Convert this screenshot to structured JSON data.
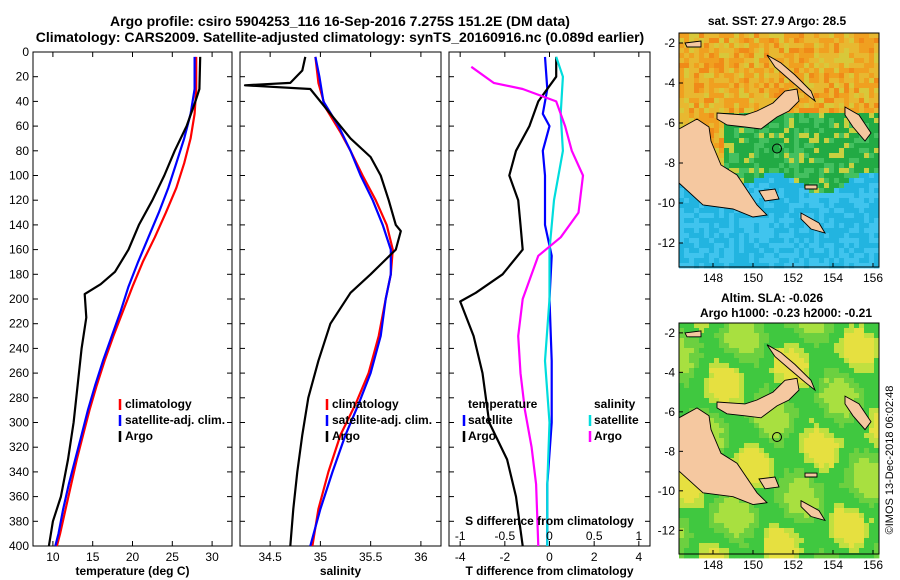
{
  "header": {
    "line1": "Argo profile: csiro 5904253_116 16-Sep-2016 7.275S 151.2E (DM data)",
    "line2": "Climatology: CARS2009. Satellite-adjusted climatology: synTS_20160916.nc (0.089d earlier)"
  },
  "footer": {
    "credit": "©IMOS 13-Dec-2018 06:02:48"
  },
  "colors": {
    "climatology": "#ff0000",
    "satellite": "#0000ff",
    "argo": "#000000",
    "sat_s": "#00dddd",
    "argo_s": "#ff00ff"
  },
  "chart_data": [
    {
      "type": "line",
      "title": "",
      "xlabel": "temperature (deg C)",
      "ylabel": "",
      "xlim": [
        7.5,
        32.5
      ],
      "ylim": [
        400,
        0
      ],
      "xticks": [
        10,
        15,
        20,
        25,
        30
      ],
      "yticks": [
        0,
        20,
        40,
        60,
        80,
        100,
        120,
        140,
        160,
        180,
        200,
        220,
        240,
        260,
        280,
        300,
        320,
        340,
        360,
        380,
        400
      ],
      "legend": [
        "climatology",
        "satellite-adj. clim.",
        "Argo"
      ],
      "legend_position": "lower-right",
      "series": [
        {
          "name": "climatology",
          "color": "#ff0000",
          "points": [
            [
              28.0,
              4
            ],
            [
              28.0,
              30
            ],
            [
              27.8,
              50
            ],
            [
              27.3,
              70
            ],
            [
              26.5,
              90
            ],
            [
              25.5,
              110
            ],
            [
              24.2,
              130
            ],
            [
              22.8,
              150
            ],
            [
              21.3,
              170
            ],
            [
              20.0,
              190
            ],
            [
              18.8,
              210
            ],
            [
              17.6,
              230
            ],
            [
              16.5,
              250
            ],
            [
              15.5,
              270
            ],
            [
              14.6,
              290
            ],
            [
              13.8,
              310
            ],
            [
              13.0,
              330
            ],
            [
              12.3,
              350
            ],
            [
              11.6,
              370
            ],
            [
              10.9,
              390
            ],
            [
              10.5,
              400
            ]
          ]
        },
        {
          "name": "satellite-adj. clim.",
          "color": "#0000ff",
          "points": [
            [
              27.8,
              4
            ],
            [
              27.8,
              30
            ],
            [
              27.3,
              50
            ],
            [
              26.5,
              70
            ],
            [
              25.5,
              90
            ],
            [
              24.5,
              110
            ],
            [
              23.3,
              130
            ],
            [
              22.0,
              150
            ],
            [
              20.7,
              170
            ],
            [
              19.5,
              190
            ],
            [
              18.5,
              210
            ],
            [
              17.4,
              230
            ],
            [
              16.3,
              250
            ],
            [
              15.3,
              270
            ],
            [
              14.4,
              290
            ],
            [
              13.6,
              310
            ],
            [
              12.8,
              330
            ],
            [
              12.0,
              350
            ],
            [
              11.3,
              370
            ],
            [
              10.7,
              390
            ],
            [
              10.3,
              400
            ]
          ]
        },
        {
          "name": "Argo",
          "color": "#000000",
          "points": [
            [
              28.5,
              4
            ],
            [
              28.4,
              30
            ],
            [
              27.9,
              40
            ],
            [
              26.8,
              60
            ],
            [
              25.3,
              80
            ],
            [
              24.0,
              100
            ],
            [
              22.5,
              120
            ],
            [
              20.8,
              140
            ],
            [
              19.5,
              160
            ],
            [
              17.8,
              178
            ],
            [
              16.0,
              188
            ],
            [
              14.0,
              196
            ],
            [
              14.2,
              215
            ],
            [
              13.6,
              240
            ],
            [
              13.1,
              270
            ],
            [
              12.6,
              300
            ],
            [
              11.9,
              330
            ],
            [
              11.0,
              360
            ],
            [
              10.0,
              380
            ],
            [
              9.5,
              400
            ]
          ]
        }
      ]
    },
    {
      "type": "line",
      "title": "",
      "xlabel": "salinity",
      "ylabel": "",
      "xlim": [
        34.2,
        36.2
      ],
      "ylim": [
        400,
        0
      ],
      "xticks": [
        34.5,
        35,
        35.5,
        36
      ],
      "yticks": [
        0,
        20,
        40,
        60,
        80,
        100,
        120,
        140,
        160,
        180,
        200,
        220,
        240,
        260,
        280,
        300,
        320,
        340,
        360,
        380,
        400
      ],
      "legend": [
        "climatology",
        "satellite-adj. clim.",
        "Argo"
      ],
      "legend_position": "lower-right",
      "series": [
        {
          "name": "climatology",
          "color": "#ff0000",
          "points": [
            [
              34.95,
              4
            ],
            [
              34.98,
              25
            ],
            [
              35.05,
              45
            ],
            [
              35.2,
              65
            ],
            [
              35.3,
              80
            ],
            [
              35.42,
              100
            ],
            [
              35.55,
              120
            ],
            [
              35.66,
              140
            ],
            [
              35.72,
              160
            ],
            [
              35.7,
              180
            ],
            [
              35.65,
              200
            ],
            [
              35.58,
              230
            ],
            [
              35.48,
              260
            ],
            [
              35.35,
              285
            ],
            [
              35.2,
              310
            ],
            [
              35.08,
              340
            ],
            [
              34.98,
              370
            ],
            [
              34.92,
              400
            ]
          ]
        },
        {
          "name": "satellite-adj. clim.",
          "color": "#0000ff",
          "points": [
            [
              34.95,
              4
            ],
            [
              34.99,
              20
            ],
            [
              35.03,
              40
            ],
            [
              35.18,
              60
            ],
            [
              35.3,
              80
            ],
            [
              35.4,
              100
            ],
            [
              35.52,
              120
            ],
            [
              35.62,
              140
            ],
            [
              35.7,
              160
            ],
            [
              35.7,
              180
            ],
            [
              35.65,
              200
            ],
            [
              35.6,
              230
            ],
            [
              35.5,
              260
            ],
            [
              35.38,
              285
            ],
            [
              35.25,
              310
            ],
            [
              35.12,
              340
            ],
            [
              35.0,
              370
            ],
            [
              34.9,
              400
            ]
          ]
        },
        {
          "name": "Argo",
          "color": "#000000",
          "points": [
            [
              34.85,
              4
            ],
            [
              34.82,
              15
            ],
            [
              34.7,
              25
            ],
            [
              34.25,
              27
            ],
            [
              34.9,
              30
            ],
            [
              35.1,
              50
            ],
            [
              35.3,
              70
            ],
            [
              35.5,
              85
            ],
            [
              35.6,
              100
            ],
            [
              35.68,
              120
            ],
            [
              35.75,
              140
            ],
            [
              35.8,
              145
            ],
            [
              35.75,
              160
            ],
            [
              35.5,
              180
            ],
            [
              35.3,
              195
            ],
            [
              35.1,
              220
            ],
            [
              34.98,
              250
            ],
            [
              34.88,
              280
            ],
            [
              34.82,
              310
            ],
            [
              34.77,
              340
            ],
            [
              34.73,
              370
            ],
            [
              34.7,
              400
            ]
          ]
        }
      ]
    },
    {
      "type": "line",
      "title": "",
      "xlabel": "T difference from climatology",
      "top_xlabel": "S difference from climatology",
      "ylabel": "",
      "xlim": [
        -4.5,
        4.5
      ],
      "ylim": [
        400,
        0
      ],
      "xticks": [
        -4,
        -2,
        0,
        2,
        4
      ],
      "top_xticks": [
        "-1",
        "-0.5",
        "0",
        "0.5",
        "1"
      ],
      "top_xtick_values": [
        -4,
        -2,
        0,
        2,
        4
      ],
      "yticks": [
        0,
        20,
        40,
        60,
        80,
        100,
        120,
        140,
        160,
        180,
        200,
        220,
        240,
        260,
        280,
        300,
        320,
        340,
        360,
        380,
        400
      ],
      "legend_left": [
        "temperature",
        "satellite",
        "Argo"
      ],
      "legend_right": [
        "salinity",
        "satellite",
        "Argo"
      ],
      "legend_position": "lower",
      "series": [
        {
          "name": "T satellite",
          "color": "#0000ff",
          "points": [
            [
              -0.2,
              4
            ],
            [
              -0.1,
              30
            ],
            [
              -0.3,
              50
            ],
            [
              0.0,
              60
            ],
            [
              -0.3,
              80
            ],
            [
              -0.2,
              100
            ],
            [
              -0.2,
              140
            ],
            [
              0.1,
              165
            ],
            [
              0.0,
              200
            ],
            [
              0.1,
              250
            ],
            [
              0.1,
              300
            ],
            [
              -0.1,
              350
            ],
            [
              -0.1,
              400
            ]
          ]
        },
        {
          "name": "T Argo",
          "color": "#000000",
          "points": [
            [
              0.3,
              4
            ],
            [
              0.3,
              20
            ],
            [
              -0.5,
              40
            ],
            [
              -0.9,
              60
            ],
            [
              -1.5,
              80
            ],
            [
              -1.8,
              100
            ],
            [
              -1.4,
              120
            ],
            [
              -1.3,
              140
            ],
            [
              -1.2,
              160
            ],
            [
              -2.1,
              180
            ],
            [
              -3.3,
              195
            ],
            [
              -4.0,
              202
            ],
            [
              -3.4,
              230
            ],
            [
              -3.0,
              260
            ],
            [
              -2.7,
              300
            ],
            [
              -1.9,
              330
            ],
            [
              -1.5,
              360
            ],
            [
              -1.2,
              400
            ]
          ]
        },
        {
          "name": "S satellite",
          "color": "#00dddd",
          "points": [
            [
              0.3,
              4
            ],
            [
              0.6,
              20
            ],
            [
              0.5,
              50
            ],
            [
              0.6,
              80
            ],
            [
              0.2,
              120
            ],
            [
              0.0,
              160
            ],
            [
              0.0,
              200
            ],
            [
              -0.2,
              250
            ],
            [
              0.0,
              300
            ],
            [
              -0.1,
              350
            ],
            [
              -0.1,
              400
            ]
          ]
        },
        {
          "name": "S Argo",
          "color": "#ff00ff",
          "points": [
            [
              -3.5,
              12
            ],
            [
              -2.5,
              25
            ],
            [
              -1.2,
              30
            ],
            [
              0.3,
              40
            ],
            [
              0.7,
              60
            ],
            [
              1.0,
              80
            ],
            [
              1.5,
              100
            ],
            [
              1.3,
              130
            ],
            [
              0.5,
              150
            ],
            [
              -0.5,
              165
            ],
            [
              -0.8,
              180
            ],
            [
              -1.2,
              200
            ],
            [
              -1.4,
              230
            ],
            [
              -1.3,
              260
            ],
            [
              -1.1,
              290
            ],
            [
              -0.8,
              320
            ],
            [
              -0.6,
              350
            ],
            [
              -0.5,
              400
            ]
          ]
        }
      ]
    }
  ],
  "maps": [
    {
      "title": "sat. SST: 27.9 Argo: 28.5",
      "subtitle": "",
      "xticks": [
        "148",
        "150",
        "152",
        "154",
        "156"
      ],
      "yticks": [
        "-2",
        "-4",
        "-6",
        "-8",
        "-10",
        "-12"
      ],
      "argo_marker": {
        "lon": 151.2,
        "lat": -7.275
      }
    },
    {
      "title": "Altim. SLA: -0.026",
      "subtitle": "Argo h1000: -0.23 h2000: -0.21",
      "xticks": [
        "148",
        "150",
        "152",
        "154",
        "156"
      ],
      "yticks": [
        "-2",
        "-4",
        "-6",
        "-8",
        "-10",
        "-12"
      ],
      "argo_marker": {
        "lon": 151.2,
        "lat": -7.275
      }
    }
  ]
}
